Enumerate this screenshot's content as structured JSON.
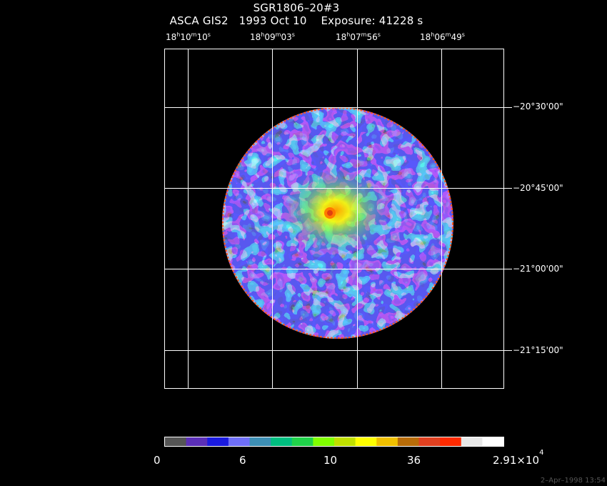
{
  "header": {
    "title": "SGR1806–20#3",
    "subtitle": "ASCA GIS2   1993 Oct 10    Exposure: 41228 s"
  },
  "ra_ticks": [
    {
      "h": "18",
      "m": "10",
      "s": "10"
    },
    {
      "h": "18",
      "m": "09",
      "s": "03"
    },
    {
      "h": "18",
      "m": "07",
      "s": "56"
    },
    {
      "h": "18",
      "m": "06",
      "s": "49"
    }
  ],
  "dec_ticks": [
    "−20°30'00\"",
    "−20°45'00\"",
    "−21°00'00\"",
    "−21°15'00\""
  ],
  "colorbar": {
    "colors": [
      "#555555",
      "#5b2fb8",
      "#1a1adf",
      "#6f6ff7",
      "#3d8fb5",
      "#00bf80",
      "#20d24a",
      "#80ff00",
      "#c0e000",
      "#ffff00",
      "#f0c000",
      "#b86c08",
      "#e04020",
      "#ff2a00",
      "#e8e8e8",
      "#ffffff"
    ],
    "labels": [
      "0",
      "6",
      "10",
      "36"
    ],
    "max_label_mantissa": "2.91×10",
    "max_label_exponent": "4"
  },
  "timestamp": "2–Apr–1998 13:54"
}
